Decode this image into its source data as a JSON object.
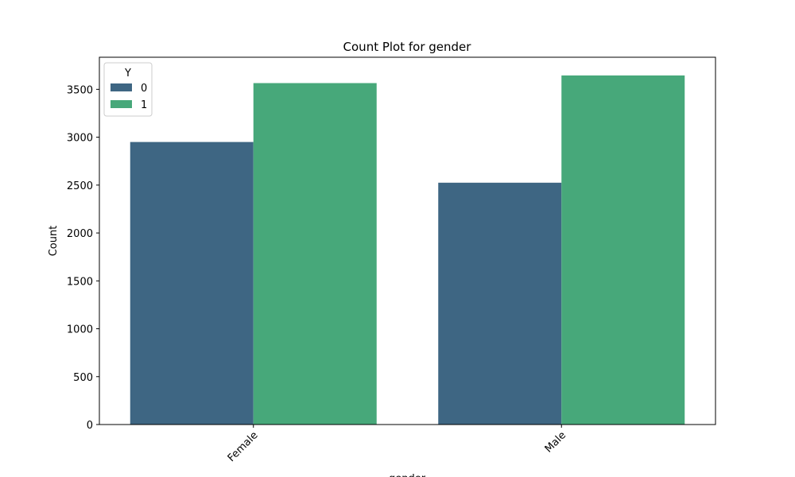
{
  "chart_data": {
    "type": "bar",
    "title": "Count Plot for gender",
    "xlabel": "gender",
    "ylabel": "Count",
    "categories": [
      "Female",
      "Male"
    ],
    "series": [
      {
        "name": "0",
        "color": "#3e6683",
        "values": [
          2950,
          2525
        ]
      },
      {
        "name": "1",
        "color": "#47a87a",
        "values": [
          3565,
          3645
        ]
      }
    ],
    "ylim": [
      0,
      3835
    ],
    "yticks": [
      0,
      500,
      1000,
      1500,
      2000,
      2500,
      3000,
      3500
    ],
    "legend": {
      "title": "Y",
      "placement": "top-left"
    },
    "grid": false
  }
}
